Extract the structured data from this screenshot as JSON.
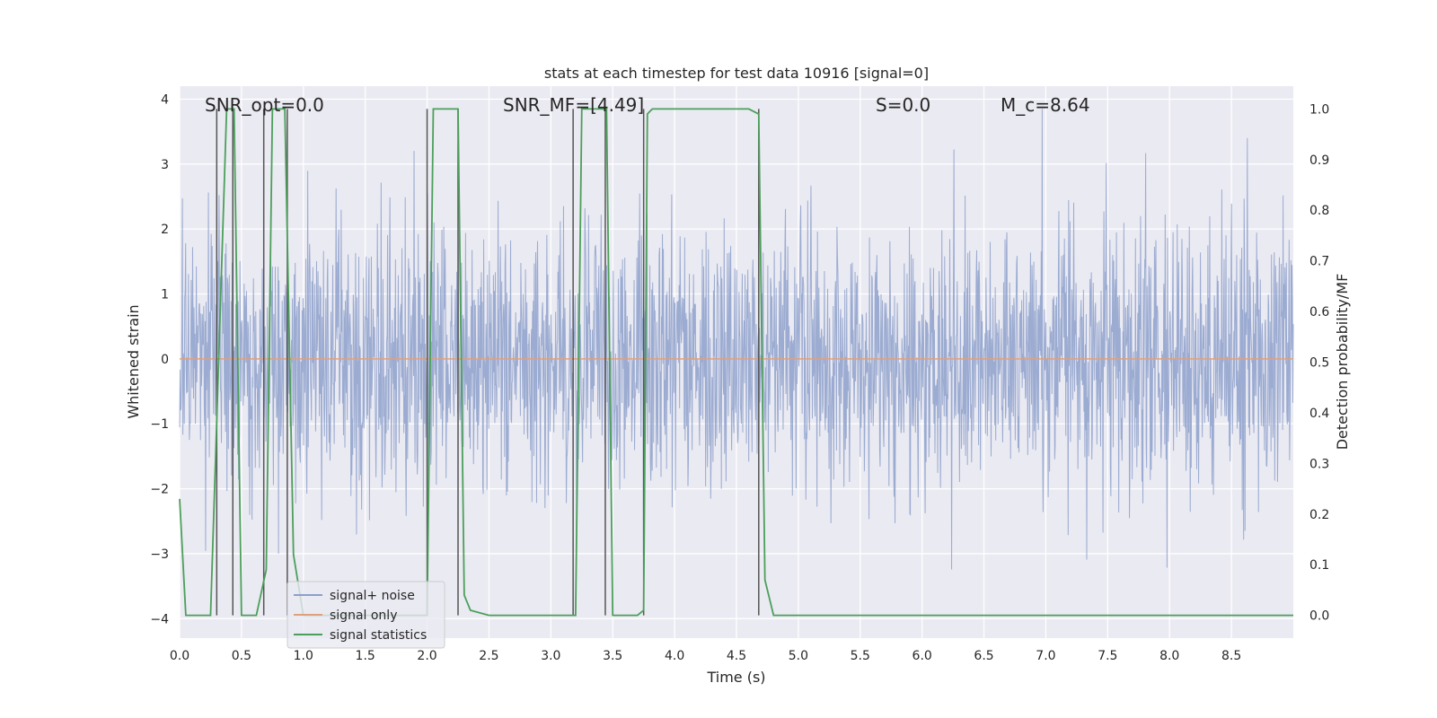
{
  "chart_data": {
    "type": "line",
    "title": "stats at each timestep for test data 10916 [signal=0]",
    "xlabel": "Time (s)",
    "ylabel": "Whitened strain",
    "y2label": "Detection probability/MF",
    "xlim": [
      0.0,
      9.0
    ],
    "ylim": [
      -4.3,
      4.2
    ],
    "y2lim": [
      -0.045,
      1.045
    ],
    "xticks": [
      0.0,
      0.5,
      1.0,
      1.5,
      2.0,
      2.5,
      3.0,
      3.5,
      4.0,
      4.5,
      5.0,
      5.5,
      6.0,
      6.5,
      7.0,
      7.5,
      8.0,
      8.5
    ],
    "xtick_labels": [
      "0.0",
      "0.5",
      "1.0",
      "1.5",
      "2.0",
      "2.5",
      "3.0",
      "3.5",
      "4.0",
      "4.5",
      "5.0",
      "5.5",
      "6.0",
      "6.5",
      "7.0",
      "7.5",
      "8.0",
      "8.5"
    ],
    "yticks": [
      -4,
      -3,
      -2,
      -1,
      0,
      1,
      2,
      3,
      4
    ],
    "ytick_labels": [
      "−4",
      "−3",
      "−2",
      "−1",
      "0",
      "1",
      "2",
      "3",
      "4"
    ],
    "y2ticks": [
      0.0,
      0.1,
      0.2,
      0.3,
      0.4,
      0.5,
      0.6,
      0.7,
      0.8,
      0.9,
      1.0
    ],
    "y2tick_labels": [
      "0.0",
      "0.1",
      "0.2",
      "0.3",
      "0.4",
      "0.5",
      "0.6",
      "0.7",
      "0.8",
      "0.9",
      "1.0"
    ],
    "grid": true,
    "legend_position": "lower-left",
    "annotations": [
      {
        "id": "snr-opt",
        "text": "SNR_opt=0.0",
        "x": 0.2
      },
      {
        "id": "snr-mf",
        "text": "SNR_MF=[4.49]",
        "x": 2.6
      },
      {
        "id": "s-value",
        "text": "S=0.0",
        "x": 5.6
      },
      {
        "id": "mc-value",
        "text": "M_c=8.64",
        "x": 6.6
      }
    ],
    "series": [
      {
        "name": "signal+ noise",
        "color": "#8da0cb",
        "axis": "left",
        "amplitude_envelope": [
          -3.4,
          3.85
        ],
        "sample_rate_hz": 2048
      },
      {
        "name": "signal only",
        "color": "#e1a07c",
        "axis": "left",
        "x": [
          0.0,
          9.0
        ],
        "y": [
          0.0,
          0.0
        ]
      },
      {
        "name": "signal statistics",
        "color": "#4c9f5a",
        "axis": "right",
        "x": [
          0.0,
          0.05,
          0.25,
          0.38,
          0.44,
          0.5,
          0.62,
          0.7,
          0.75,
          0.85,
          0.92,
          1.0,
          2.0,
          2.05,
          2.1,
          2.25,
          2.3,
          2.35,
          2.5,
          3.0,
          3.2,
          3.25,
          3.3,
          3.45,
          3.5,
          3.7,
          3.75,
          3.78,
          3.82,
          4.0,
          4.6,
          4.68,
          4.73,
          4.8,
          5.0,
          9.0
        ],
        "y": [
          0.23,
          0.0,
          0.0,
          1.0,
          1.0,
          0.0,
          0.0,
          0.09,
          1.0,
          1.0,
          0.12,
          0.0,
          0.0,
          1.0,
          1.0,
          1.0,
          0.04,
          0.01,
          0.0,
          0.0,
          0.0,
          1.0,
          1.0,
          1.0,
          0.0,
          0.0,
          0.01,
          0.99,
          1.0,
          1.0,
          1.0,
          0.99,
          0.07,
          0.0,
          0.0,
          0.0
        ]
      }
    ],
    "vertical_markers": {
      "color": "#555555",
      "axis_range_y2": [
        0.0,
        1.0
      ],
      "x": [
        0.3,
        0.43,
        0.68,
        0.87,
        2.0,
        2.25,
        3.18,
        3.44,
        3.75,
        4.68
      ]
    }
  }
}
